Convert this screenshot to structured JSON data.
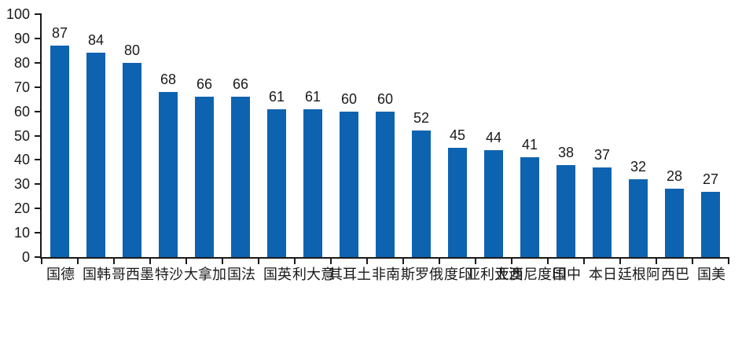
{
  "chart_data": {
    "type": "bar",
    "title": "",
    "categories": [
      "德国",
      "韩国",
      "墨西哥",
      "沙特",
      "加拿大",
      "法国",
      "英国",
      "意大利",
      "土耳其",
      "南非",
      "俄罗斯",
      "印度",
      "澳大利亚",
      "印度尼西亚",
      "中国",
      "日本",
      "阿根廷",
      "巴西",
      "美国"
    ],
    "values": [
      87,
      84,
      80,
      68,
      66,
      66,
      61,
      61,
      60,
      60,
      52,
      45,
      44,
      41,
      38,
      37,
      32,
      28,
      27
    ],
    "xlabel": "",
    "ylabel": "",
    "ylim": [
      0,
      100
    ],
    "yticks": [
      0,
      10,
      20,
      30,
      40,
      50,
      60,
      70,
      80,
      90,
      100
    ],
    "grid": "off",
    "legend": "none",
    "value_labels": "above bars",
    "x_label_orientation": "vertical-upright",
    "colors": {
      "bar": "#0e63b0",
      "axis": "#1a1a1a",
      "text": "#1a1a1a",
      "background": "#ffffff"
    }
  }
}
